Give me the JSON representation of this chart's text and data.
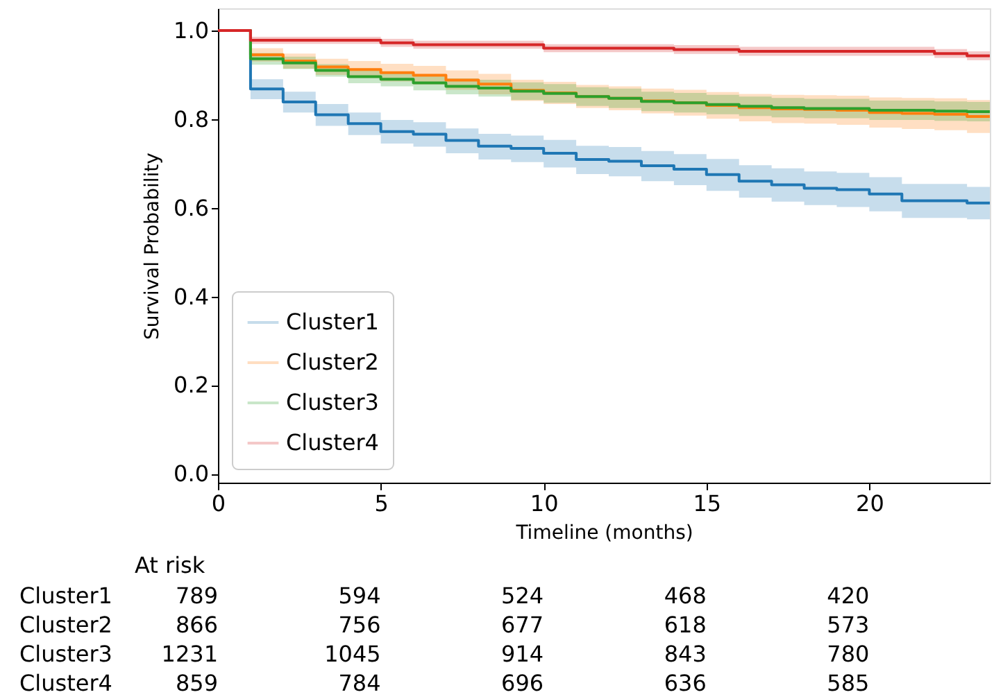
{
  "chart_data": {
    "type": "step",
    "xlabel": "Timeline (months)",
    "ylabel": "Survival Probability",
    "x": [
      0,
      1,
      2,
      3,
      4,
      5,
      6,
      7,
      8,
      9,
      10,
      11,
      12,
      13,
      14,
      15,
      16,
      17,
      18,
      19,
      20,
      21,
      22,
      23,
      23.7
    ],
    "series": [
      {
        "name": "Cluster1",
        "color": "#1f77b4",
        "values": [
          1.0,
          0.868,
          0.839,
          0.81,
          0.79,
          0.772,
          0.766,
          0.752,
          0.739,
          0.734,
          0.723,
          0.709,
          0.705,
          0.695,
          0.687,
          0.675,
          0.66,
          0.652,
          0.644,
          0.641,
          0.631,
          0.616,
          0.616,
          0.611,
          0.611
        ],
        "lower": [
          1.0,
          0.845,
          0.815,
          0.785,
          0.764,
          0.745,
          0.738,
          0.723,
          0.709,
          0.703,
          0.691,
          0.676,
          0.671,
          0.66,
          0.651,
          0.638,
          0.623,
          0.614,
          0.606,
          0.602,
          0.592,
          0.577,
          0.577,
          0.574,
          0.574
        ],
        "upper": [
          1.0,
          0.89,
          0.862,
          0.834,
          0.815,
          0.798,
          0.793,
          0.779,
          0.767,
          0.763,
          0.753,
          0.74,
          0.737,
          0.728,
          0.721,
          0.71,
          0.696,
          0.689,
          0.682,
          0.679,
          0.669,
          0.654,
          0.654,
          0.647,
          0.647
        ]
      },
      {
        "name": "Cluster2",
        "color": "#ff7f0e",
        "values": [
          1.0,
          0.945,
          0.931,
          0.918,
          0.912,
          0.905,
          0.899,
          0.888,
          0.879,
          0.865,
          0.859,
          0.851,
          0.847,
          0.841,
          0.837,
          0.831,
          0.826,
          0.823,
          0.822,
          0.82,
          0.815,
          0.813,
          0.811,
          0.806,
          0.806
        ],
        "lower": [
          1.0,
          0.93,
          0.914,
          0.9,
          0.893,
          0.885,
          0.878,
          0.866,
          0.856,
          0.841,
          0.834,
          0.825,
          0.82,
          0.813,
          0.808,
          0.801,
          0.795,
          0.791,
          0.79,
          0.787,
          0.781,
          0.778,
          0.775,
          0.769,
          0.769
        ],
        "upper": [
          1.0,
          0.96,
          0.948,
          0.936,
          0.931,
          0.925,
          0.92,
          0.91,
          0.902,
          0.889,
          0.884,
          0.877,
          0.874,
          0.869,
          0.866,
          0.861,
          0.857,
          0.855,
          0.854,
          0.853,
          0.849,
          0.848,
          0.847,
          0.843,
          0.843
        ]
      },
      {
        "name": "Cluster3",
        "color": "#2ca02c",
        "values": [
          1.0,
          0.936,
          0.927,
          0.91,
          0.896,
          0.89,
          0.882,
          0.874,
          0.87,
          0.863,
          0.858,
          0.851,
          0.847,
          0.84,
          0.837,
          0.833,
          0.829,
          0.826,
          0.824,
          0.824,
          0.82,
          0.82,
          0.818,
          0.817,
          0.817
        ],
        "lower": [
          1.0,
          0.923,
          0.913,
          0.896,
          0.881,
          0.874,
          0.865,
          0.856,
          0.851,
          0.843,
          0.837,
          0.83,
          0.825,
          0.818,
          0.815,
          0.811,
          0.807,
          0.804,
          0.802,
          0.802,
          0.798,
          0.798,
          0.796,
          0.795,
          0.795
        ],
        "upper": [
          1.0,
          0.949,
          0.941,
          0.924,
          0.911,
          0.906,
          0.899,
          0.892,
          0.889,
          0.883,
          0.879,
          0.872,
          0.869,
          0.862,
          0.859,
          0.855,
          0.851,
          0.848,
          0.846,
          0.846,
          0.842,
          0.842,
          0.84,
          0.839,
          0.839
        ]
      },
      {
        "name": "Cluster4",
        "color": "#d62728",
        "values": [
          1.0,
          0.978,
          0.978,
          0.978,
          0.978,
          0.972,
          0.968,
          0.968,
          0.968,
          0.968,
          0.96,
          0.96,
          0.96,
          0.96,
          0.957,
          0.957,
          0.953,
          0.953,
          0.953,
          0.953,
          0.953,
          0.953,
          0.948,
          0.943,
          0.943
        ],
        "lower": [
          1.0,
          0.97,
          0.97,
          0.97,
          0.97,
          0.963,
          0.959,
          0.959,
          0.959,
          0.959,
          0.951,
          0.951,
          0.951,
          0.951,
          0.947,
          0.947,
          0.943,
          0.943,
          0.943,
          0.943,
          0.943,
          0.943,
          0.938,
          0.933,
          0.933
        ],
        "upper": [
          1.0,
          0.986,
          0.986,
          0.986,
          0.986,
          0.981,
          0.977,
          0.977,
          0.977,
          0.977,
          0.969,
          0.969,
          0.969,
          0.969,
          0.967,
          0.967,
          0.963,
          0.963,
          0.963,
          0.963,
          0.963,
          0.963,
          0.958,
          0.953,
          0.953
        ]
      }
    ],
    "xlim": [
      0,
      23.7
    ],
    "xticks": [
      0,
      5,
      10,
      15,
      20
    ],
    "ylim": [
      -0.02,
      1.05
    ],
    "yticks": [
      {
        "value": 0,
        "label": "0.0"
      },
      {
        "value": 0.2,
        "label": "0.2"
      },
      {
        "value": 0.4,
        "label": "0.4"
      },
      {
        "value": 0.6,
        "label": "0.6"
      },
      {
        "value": 0.8,
        "label": "0.8"
      },
      {
        "value": 1.0,
        "label": "1.0"
      }
    ],
    "grid": false,
    "legend": "bottom left",
    "line_style": "solid",
    "annotations": [
      "At risk",
      "789",
      "594",
      "524",
      "468",
      "420",
      "866",
      "756",
      "677",
      "618",
      "573",
      "1231",
      "1045",
      "914",
      "843",
      "780",
      "859",
      "784",
      "696",
      "636",
      "585"
    ]
  }
}
